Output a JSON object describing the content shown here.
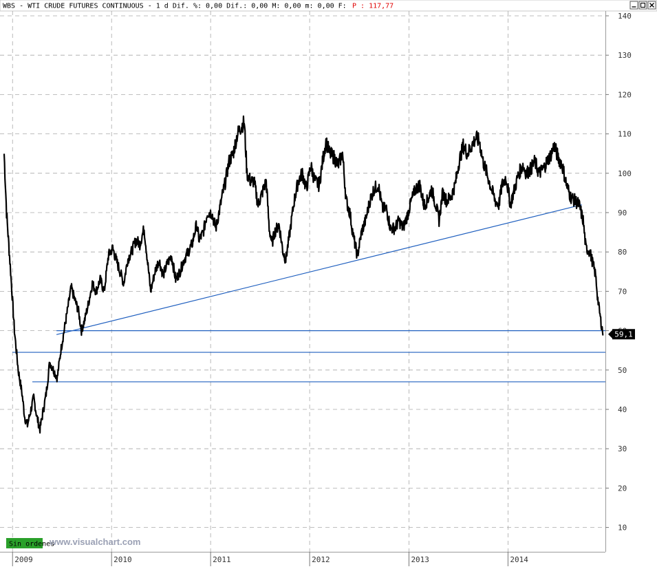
{
  "header": {
    "title": "WBS - WTI CRUDE FUTURES CONTINUOUS - 1 d Dif. %: 0,00 Dif.: 0,00 M: 0,00 m: 0,00 F:",
    "price_label": "P : 117,77"
  },
  "badge": {
    "label": "Sin ordenes"
  },
  "watermark": {
    "text": "www.visualchart.com"
  },
  "last_price_tag": "59,1",
  "colors": {
    "price": "#000000",
    "trendline": "#1f5fbf",
    "grid": "#a8a8a8",
    "header_price": "#e00000",
    "badge_bg": "#2aa02a",
    "watermark": "#9aa0b4"
  },
  "chart_data": {
    "type": "line",
    "ylim": [
      3,
      142
    ],
    "xlim": [
      "2008-12-01",
      "2014-12-26"
    ],
    "yticks": [
      140,
      130,
      120,
      110,
      100,
      90,
      80,
      70,
      60,
      50,
      40,
      30,
      20,
      10
    ],
    "xticks": [
      {
        "label": "2009",
        "date": "2009-01-01"
      },
      {
        "label": "2010",
        "date": "2010-01-01"
      },
      {
        "label": "2011",
        "date": "2011-01-01"
      },
      {
        "label": "2012",
        "date": "2012-01-01"
      },
      {
        "label": "2013",
        "date": "2013-01-01"
      },
      {
        "label": "2014",
        "date": "2014-01-01"
      }
    ],
    "series": [
      {
        "type": "price",
        "points": [
          [
            "2008-12-01",
            105
          ],
          [
            "2008-12-10",
            90
          ],
          [
            "2008-12-25",
            75
          ],
          [
            "2009-01-08",
            60
          ],
          [
            "2009-01-22",
            50
          ],
          [
            "2009-02-05",
            44
          ],
          [
            "2009-02-15",
            38
          ],
          [
            "2009-02-25",
            36
          ],
          [
            "2009-03-10",
            40
          ],
          [
            "2009-03-20",
            43
          ],
          [
            "2009-04-01",
            38
          ],
          [
            "2009-04-12",
            35
          ],
          [
            "2009-04-25",
            40
          ],
          [
            "2009-05-05",
            44
          ],
          [
            "2009-05-18",
            52
          ],
          [
            "2009-06-01",
            50
          ],
          [
            "2009-06-15",
            48
          ],
          [
            "2009-06-28",
            55
          ],
          [
            "2009-07-10",
            60
          ],
          [
            "2009-07-22",
            65
          ],
          [
            "2009-08-05",
            71
          ],
          [
            "2009-08-18",
            68
          ],
          [
            "2009-09-01",
            65
          ],
          [
            "2009-09-12",
            60
          ],
          [
            "2009-09-25",
            63
          ],
          [
            "2009-10-08",
            67
          ],
          [
            "2009-10-22",
            72
          ],
          [
            "2009-11-05",
            70
          ],
          [
            "2009-11-20",
            73
          ],
          [
            "2009-12-05",
            70
          ],
          [
            "2009-12-20",
            79
          ],
          [
            "2010-01-05",
            81
          ],
          [
            "2010-01-18",
            78
          ],
          [
            "2010-02-01",
            75
          ],
          [
            "2010-02-15",
            72
          ],
          [
            "2010-03-01",
            78
          ],
          [
            "2010-03-15",
            80
          ],
          [
            "2010-04-01",
            83
          ],
          [
            "2010-04-15",
            82
          ],
          [
            "2010-05-01",
            86
          ],
          [
            "2010-05-10",
            80
          ],
          [
            "2010-05-25",
            70
          ],
          [
            "2010-06-10",
            75
          ],
          [
            "2010-06-25",
            78
          ],
          [
            "2010-07-10",
            74
          ],
          [
            "2010-07-25",
            77
          ],
          [
            "2010-08-10",
            79
          ],
          [
            "2010-08-25",
            73
          ],
          [
            "2010-09-10",
            75
          ],
          [
            "2010-09-25",
            78
          ],
          [
            "2010-10-10",
            80
          ],
          [
            "2010-10-25",
            82
          ],
          [
            "2010-11-10",
            87
          ],
          [
            "2010-11-20",
            83
          ],
          [
            "2010-12-05",
            85
          ],
          [
            "2010-12-20",
            90
          ],
          [
            "2011-01-05",
            90
          ],
          [
            "2011-01-20",
            86
          ],
          [
            "2011-02-01",
            90
          ],
          [
            "2011-02-15",
            95
          ],
          [
            "2011-02-25",
            98
          ],
          [
            "2011-03-10",
            103
          ],
          [
            "2011-03-25",
            105
          ],
          [
            "2011-04-10",
            110
          ],
          [
            "2011-04-25",
            112
          ],
          [
            "2011-05-05",
            113
          ],
          [
            "2011-05-15",
            100
          ],
          [
            "2011-05-28",
            98
          ],
          [
            "2011-06-10",
            98
          ],
          [
            "2011-06-25",
            92
          ],
          [
            "2011-07-10",
            95
          ],
          [
            "2011-07-25",
            98
          ],
          [
            "2011-08-05",
            86
          ],
          [
            "2011-08-15",
            82
          ],
          [
            "2011-08-25",
            85
          ],
          [
            "2011-09-10",
            87
          ],
          [
            "2011-09-25",
            80
          ],
          [
            "2011-10-05",
            78
          ],
          [
            "2011-10-20",
            85
          ],
          [
            "2011-11-05",
            93
          ],
          [
            "2011-11-20",
            98
          ],
          [
            "2011-12-05",
            100
          ],
          [
            "2011-12-20",
            96
          ],
          [
            "2012-01-05",
            102
          ],
          [
            "2012-01-20",
            98
          ],
          [
            "2012-02-05",
            97
          ],
          [
            "2012-02-20",
            104
          ],
          [
            "2012-03-01",
            108
          ],
          [
            "2012-03-15",
            105
          ],
          [
            "2012-04-01",
            104
          ],
          [
            "2012-04-15",
            102
          ],
          [
            "2012-05-01",
            105
          ],
          [
            "2012-05-15",
            93
          ],
          [
            "2012-05-28",
            90
          ],
          [
            "2012-06-10",
            84
          ],
          [
            "2012-06-25",
            79
          ],
          [
            "2012-07-10",
            85
          ],
          [
            "2012-07-25",
            88
          ],
          [
            "2012-08-10",
            93
          ],
          [
            "2012-08-25",
            96
          ],
          [
            "2012-09-10",
            97
          ],
          [
            "2012-09-25",
            91
          ],
          [
            "2012-10-10",
            91
          ],
          [
            "2012-10-25",
            86
          ],
          [
            "2012-11-10",
            86
          ],
          [
            "2012-11-25",
            88
          ],
          [
            "2012-12-10",
            86
          ],
          [
            "2012-12-25",
            89
          ],
          [
            "2013-01-10",
            93
          ],
          [
            "2013-01-25",
            96
          ],
          [
            "2013-02-10",
            97
          ],
          [
            "2013-02-25",
            92
          ],
          [
            "2013-03-10",
            93
          ],
          [
            "2013-03-25",
            96
          ],
          [
            "2013-04-10",
            92
          ],
          [
            "2013-04-22",
            88
          ],
          [
            "2013-05-05",
            95
          ],
          [
            "2013-05-20",
            93
          ],
          [
            "2013-06-05",
            94
          ],
          [
            "2013-06-20",
            97
          ],
          [
            "2013-07-05",
            103
          ],
          [
            "2013-07-20",
            107
          ],
          [
            "2013-08-05",
            105
          ],
          [
            "2013-08-20",
            107
          ],
          [
            "2013-09-05",
            109
          ],
          [
            "2013-09-18",
            108
          ],
          [
            "2013-10-01",
            103
          ],
          [
            "2013-10-15",
            100
          ],
          [
            "2013-11-01",
            96
          ],
          [
            "2013-11-15",
            93
          ],
          [
            "2013-11-28",
            92
          ],
          [
            "2013-12-10",
            97
          ],
          [
            "2013-12-25",
            99
          ],
          [
            "2014-01-10",
            92
          ],
          [
            "2014-01-25",
            96
          ],
          [
            "2014-02-10",
            100
          ],
          [
            "2014-02-25",
            102
          ],
          [
            "2014-03-10",
            100
          ],
          [
            "2014-03-25",
            101
          ],
          [
            "2014-04-10",
            103
          ],
          [
            "2014-04-25",
            100
          ],
          [
            "2014-05-10",
            101
          ],
          [
            "2014-05-25",
            103
          ],
          [
            "2014-06-10",
            105
          ],
          [
            "2014-06-20",
            107
          ],
          [
            "2014-07-05",
            104
          ],
          [
            "2014-07-20",
            102
          ],
          [
            "2014-08-05",
            97
          ],
          [
            "2014-08-20",
            94
          ],
          [
            "2014-09-05",
            93
          ],
          [
            "2014-09-20",
            92
          ],
          [
            "2014-10-05",
            88
          ],
          [
            "2014-10-15",
            81
          ],
          [
            "2014-10-30",
            80
          ],
          [
            "2014-11-10",
            77
          ],
          [
            "2014-11-20",
            74
          ],
          [
            "2014-11-28",
            68
          ],
          [
            "2014-12-10",
            62
          ],
          [
            "2014-12-18",
            59
          ]
        ]
      },
      {
        "type": "trendline",
        "points": [
          [
            "2009-06-12",
            59
          ],
          [
            "2014-09-30",
            92
          ]
        ]
      },
      {
        "type": "hline",
        "y": 60,
        "x_start": "2009-06-12",
        "x_end": "2014-12-26"
      },
      {
        "type": "hline",
        "y": 54.5,
        "x_start": "2009-01-01",
        "x_end": "2014-12-26"
      },
      {
        "type": "hline",
        "y": 47,
        "x_start": "2009-03-15",
        "x_end": "2014-12-26"
      }
    ]
  }
}
